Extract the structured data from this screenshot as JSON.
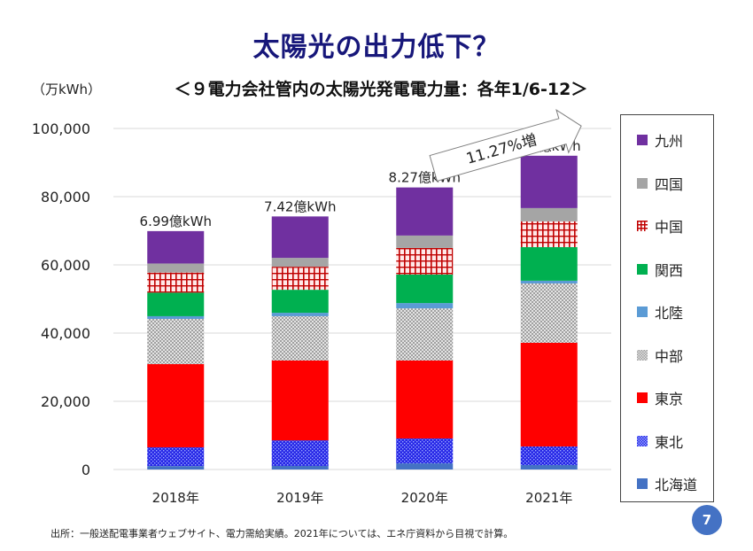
{
  "slide": {
    "title": "太陽光の出力低下？",
    "subtitle": "＜９電力会社管内の太陽光発電電力量：各年1/6-12＞",
    "unit_label": "（万kWh）",
    "footer": "出所：一般送配電事業者ウェブサイト、電力需給実績。2021年については、エネ庁資料から目視で計算。",
    "page_number": "7"
  },
  "chart_data": {
    "type": "bar",
    "stacked": true,
    "title": "９電力会社管内の太陽光発電電力量：各年1/6-12",
    "xlabel": "",
    "ylabel": "万kWh",
    "ylim": [
      0,
      100000
    ],
    "yticks": [
      0,
      20000,
      40000,
      60000,
      80000,
      100000
    ],
    "ytick_labels": [
      "0",
      "20,000",
      "40,000",
      "60,000",
      "80,000",
      "100,000"
    ],
    "grid": true,
    "legend_position": "right",
    "categories": [
      "2018年",
      "2019年",
      "2020年",
      "2021年"
    ],
    "totals_labels": [
      "6.99億kWh",
      "7.42億kWh",
      "8.27億kWh",
      "9.2億kWh"
    ],
    "series": [
      {
        "name": "北海道",
        "color": "#4472c4",
        "pattern": "solid",
        "values": [
          1000,
          1050,
          1800,
          1300
        ]
      },
      {
        "name": "東北",
        "color": "#2020e0",
        "pattern": "dots-blue",
        "values": [
          5500,
          7500,
          7300,
          5450
        ]
      },
      {
        "name": "東京",
        "color": "#ff0000",
        "pattern": "solid",
        "values": [
          24400,
          23400,
          22850,
          30400
        ]
      },
      {
        "name": "中部",
        "color": "#a6a6a6",
        "pattern": "dots-grey",
        "values": [
          13250,
          13000,
          15300,
          17400
        ]
      },
      {
        "name": "北陸",
        "color": "#5b9bd5",
        "pattern": "solid",
        "values": [
          800,
          1000,
          1550,
          800
        ]
      },
      {
        "name": "関西",
        "color": "#00b050",
        "pattern": "solid",
        "values": [
          6900,
          6750,
          8350,
          9850
        ]
      },
      {
        "name": "中国",
        "color": "#c00000",
        "pattern": "grid-red",
        "values": [
          5900,
          6750,
          7800,
          7550
        ]
      },
      {
        "name": "四国",
        "color": "#a5a5a5",
        "pattern": "solid",
        "values": [
          2650,
          2600,
          3650,
          3900
        ]
      },
      {
        "name": "九州",
        "color": "#7030a0",
        "pattern": "solid",
        "values": [
          9500,
          12150,
          14100,
          15350
        ]
      }
    ],
    "annotations": [
      {
        "text": "11.27%増",
        "type": "arrow",
        "from_category": "2020年",
        "to_category": "2021年"
      }
    ]
  }
}
